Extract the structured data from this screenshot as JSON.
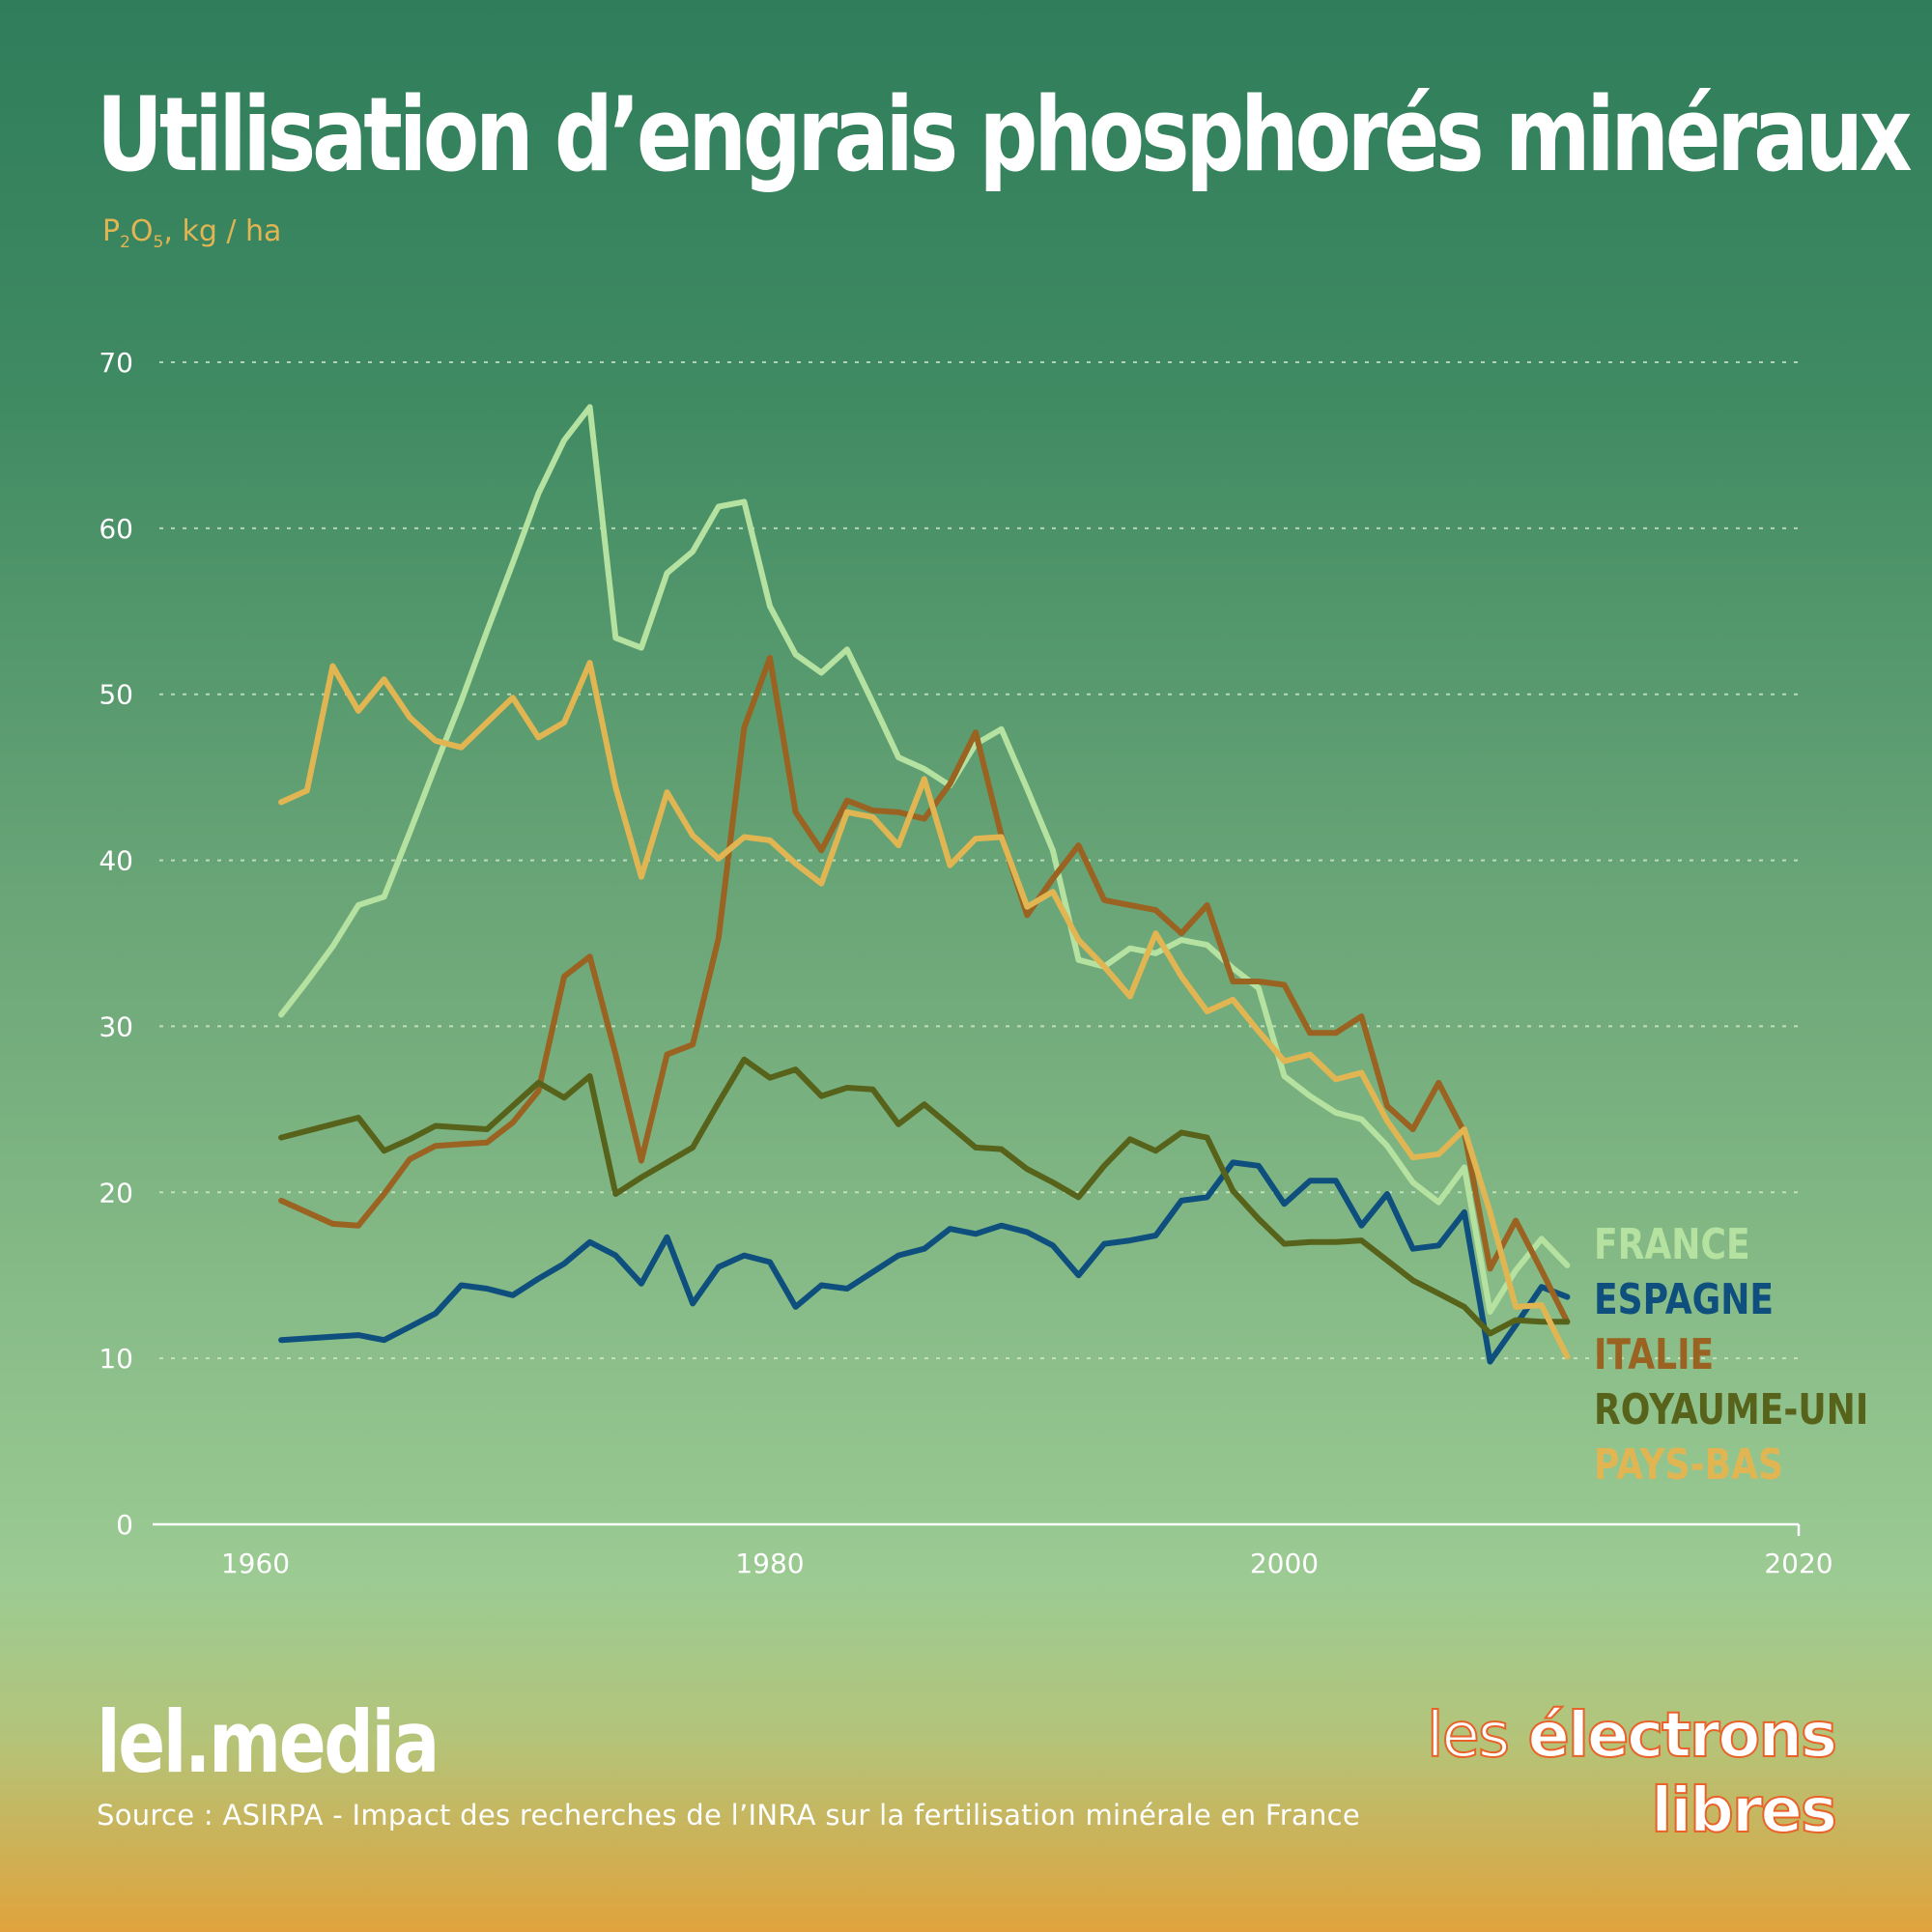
{
  "header": {
    "title": "Utilisation d’engrais phosphorés minéraux",
    "unit_p": "P",
    "unit_sub1": "2",
    "unit_o": "O",
    "unit_sub2": "5",
    "unit_rest": ", kg / ha"
  },
  "footer": {
    "brand": "lel.media",
    "source": "Source : ASIRPA - Impact des recherches de l’INRA sur la fertilisation minérale en France",
    "logo_word1": "les",
    "logo_word2": "électrons",
    "logo_word3": "libres"
  },
  "chart_data": {
    "type": "line",
    "title": "Utilisation d’engrais phosphorés minéraux",
    "ylabel": "P2O5, kg / ha",
    "xlabel": "",
    "xlim": [
      1956,
      2020
    ],
    "ylim": [
      0,
      70
    ],
    "xticks": [
      "1960",
      "1980",
      "2000",
      "2020"
    ],
    "yticks": [
      "0",
      "10",
      "20",
      "30",
      "40",
      "50",
      "60",
      "70"
    ],
    "grid": "horizontal-dotted",
    "legend_position": "right",
    "x": [
      1961,
      1962,
      1963,
      1964,
      1965,
      1966,
      1967,
      1968,
      1969,
      1970,
      1971,
      1972,
      1973,
      1974,
      1975,
      1976,
      1977,
      1978,
      1979,
      1980,
      1981,
      1982,
      1983,
      1984,
      1985,
      1986,
      1987,
      1988,
      1989,
      1990,
      1991,
      1992,
      1993,
      1994,
      1995,
      1996,
      1997,
      1998,
      1999,
      2000,
      2001,
      2002,
      2003,
      2004,
      2005,
      2006,
      2007,
      2008,
      2009,
      2010,
      2011
    ],
    "series": [
      {
        "name": "FRANCE",
        "color": "#b5e2a0",
        "values": [
          30.7,
          32.7,
          34.8,
          37.3,
          37.8,
          41.7,
          45.7,
          49.6,
          53.8,
          57.9,
          62.1,
          65.3,
          67.3,
          53.4,
          52.8,
          57.3,
          58.6,
          61.3,
          61.6,
          55.3,
          52.4,
          51.3,
          52.7,
          49.5,
          46.2,
          45.5,
          44.5,
          47.0,
          47.9,
          44.3,
          40.6,
          34.0,
          33.6,
          34.7,
          34.4,
          35.2,
          34.9,
          33.5,
          32.3,
          27.0,
          25.8,
          24.8,
          24.4,
          22.8,
          20.6,
          19.4,
          21.5,
          12.8,
          15.3,
          17.2,
          15.6
        ]
      },
      {
        "name": "ESPAGNE",
        "color": "#0f4f7e",
        "values": [
          11.1,
          11.2,
          11.3,
          11.4,
          11.1,
          11.9,
          12.7,
          14.4,
          14.2,
          13.8,
          14.8,
          15.7,
          17.0,
          16.2,
          14.5,
          17.3,
          13.3,
          15.5,
          16.2,
          15.8,
          13.1,
          14.4,
          14.2,
          15.2,
          16.2,
          16.6,
          17.8,
          17.5,
          18.0,
          17.6,
          16.8,
          15.0,
          16.9,
          17.1,
          17.4,
          19.5,
          19.7,
          21.8,
          21.6,
          19.3,
          20.7,
          20.7,
          18.0,
          19.9,
          16.6,
          16.8,
          18.8,
          9.8,
          12.0,
          14.3,
          13.7
        ]
      },
      {
        "name": "ITALIE",
        "color": "#9a6322",
        "values": [
          19.5,
          18.8,
          18.1,
          18.0,
          19.9,
          22.0,
          22.8,
          22.9,
          23.0,
          24.2,
          26.1,
          33.0,
          34.2,
          28.3,
          21.9,
          28.3,
          28.9,
          35.3,
          48.0,
          52.2,
          42.9,
          40.6,
          43.6,
          43.0,
          42.9,
          42.5,
          44.6,
          47.7,
          41.5,
          36.7,
          38.9,
          40.9,
          37.6,
          37.3,
          37.0,
          35.6,
          37.3,
          32.7,
          32.7,
          32.5,
          29.6,
          29.6,
          30.6,
          25.2,
          23.8,
          26.6,
          23.6,
          15.4,
          18.3,
          15.3,
          12.2
        ]
      },
      {
        "name": "ROYAUME-UNI",
        "color": "#57621a",
        "values": [
          23.3,
          23.7,
          24.1,
          24.5,
          22.5,
          23.2,
          24.0,
          23.9,
          23.8,
          25.2,
          26.6,
          25.7,
          27.0,
          19.9,
          20.9,
          21.8,
          22.7,
          25.4,
          28.0,
          26.9,
          27.4,
          25.8,
          26.3,
          26.2,
          24.1,
          25.3,
          24.0,
          22.7,
          22.6,
          21.4,
          20.6,
          19.7,
          21.6,
          23.2,
          22.5,
          23.6,
          23.3,
          20.1,
          18.4,
          16.9,
          17.0,
          17.0,
          17.1,
          15.9,
          14.7,
          13.9,
          13.1,
          11.5,
          12.3,
          12.2,
          12.2
        ]
      },
      {
        "name": "PAYS-BAS",
        "color": "#e2b553",
        "values": [
          43.5,
          44.2,
          51.7,
          49.0,
          50.9,
          48.6,
          47.2,
          46.8,
          48.3,
          49.8,
          47.4,
          48.3,
          51.9,
          44.4,
          39.0,
          44.1,
          41.5,
          40.1,
          41.4,
          41.2,
          39.8,
          38.6,
          42.9,
          42.6,
          40.9,
          44.9,
          39.7,
          41.3,
          41.4,
          37.2,
          38.1,
          35.2,
          33.6,
          31.8,
          35.6,
          33.0,
          30.9,
          31.6,
          29.7,
          27.9,
          28.3,
          26.8,
          27.2,
          24.3,
          22.1,
          22.3,
          23.8,
          18.8,
          13.1,
          13.2,
          10.1
        ]
      }
    ]
  }
}
